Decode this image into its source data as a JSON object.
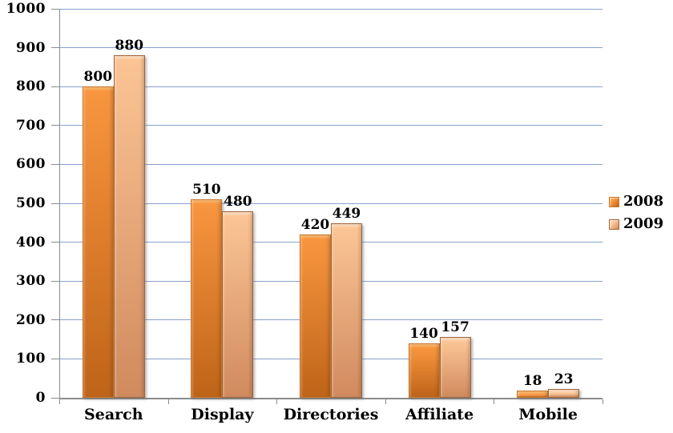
{
  "chart_data": {
    "type": "bar",
    "title": "",
    "xlabel": "",
    "ylabel": "",
    "categories": [
      "Search",
      "Display",
      "Directories",
      "Affiliate",
      "Mobile"
    ],
    "series": [
      {
        "name": "2008",
        "values": [
          800,
          510,
          420,
          140,
          18
        ],
        "color": "#F8953F",
        "color_dark": "#BE6418",
        "border": "#C9752B",
        "highlight": "#FCBE72"
      },
      {
        "name": "2009",
        "values": [
          880,
          480,
          449,
          157,
          23
        ],
        "color": "#FBC494",
        "color_dark": "#D08A5E",
        "border": "#A06438",
        "highlight": "#FEE3C9"
      }
    ],
    "ylim": [
      0,
      1000
    ],
    "ytick_step": 100,
    "grid": true,
    "legend_position": "right",
    "data_labels": true
  },
  "colors": {
    "background": "#FFFFFF",
    "gridline": "#87A3CF",
    "axis_line": "#8C8C8C",
    "text": "#000000"
  }
}
